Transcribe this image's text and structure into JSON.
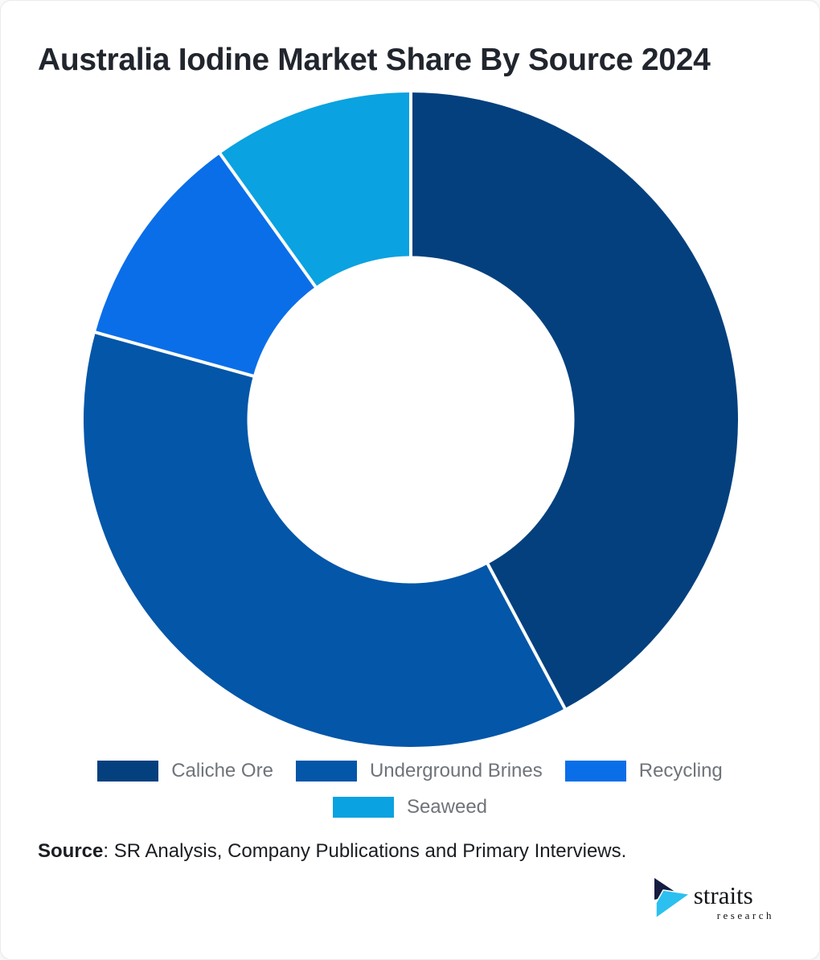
{
  "header": {
    "title": "Australia Iodine Market Share By Source 2024"
  },
  "chart_data": {
    "type": "pie",
    "subtype": "donut",
    "title": "Australia Iodine Market Share By Source 2024",
    "categories": [
      "Caliche Ore",
      "Underground Brines",
      "Recycling",
      "Seaweed"
    ],
    "values": [
      42.2,
      37.1,
      10.8,
      9.9
    ],
    "unit": "percent_share",
    "colors": [
      "#04407E",
      "#0356A8",
      "#0A6EE8",
      "#0AA2E0"
    ],
    "start_angle_deg": 0,
    "direction": "clockwise",
    "inner_radius_ratio": 0.5,
    "separator_color": "#FFFFFF",
    "legend_position": "bottom",
    "data_labels": "none"
  },
  "footer": {
    "source_label": "Source",
    "source_text": ": SR Analysis, Company Publications and Primary Interviews.",
    "logo": {
      "name": "straits",
      "subname": "research",
      "navy": "#161C40",
      "cyan": "#2BC0F0"
    }
  }
}
